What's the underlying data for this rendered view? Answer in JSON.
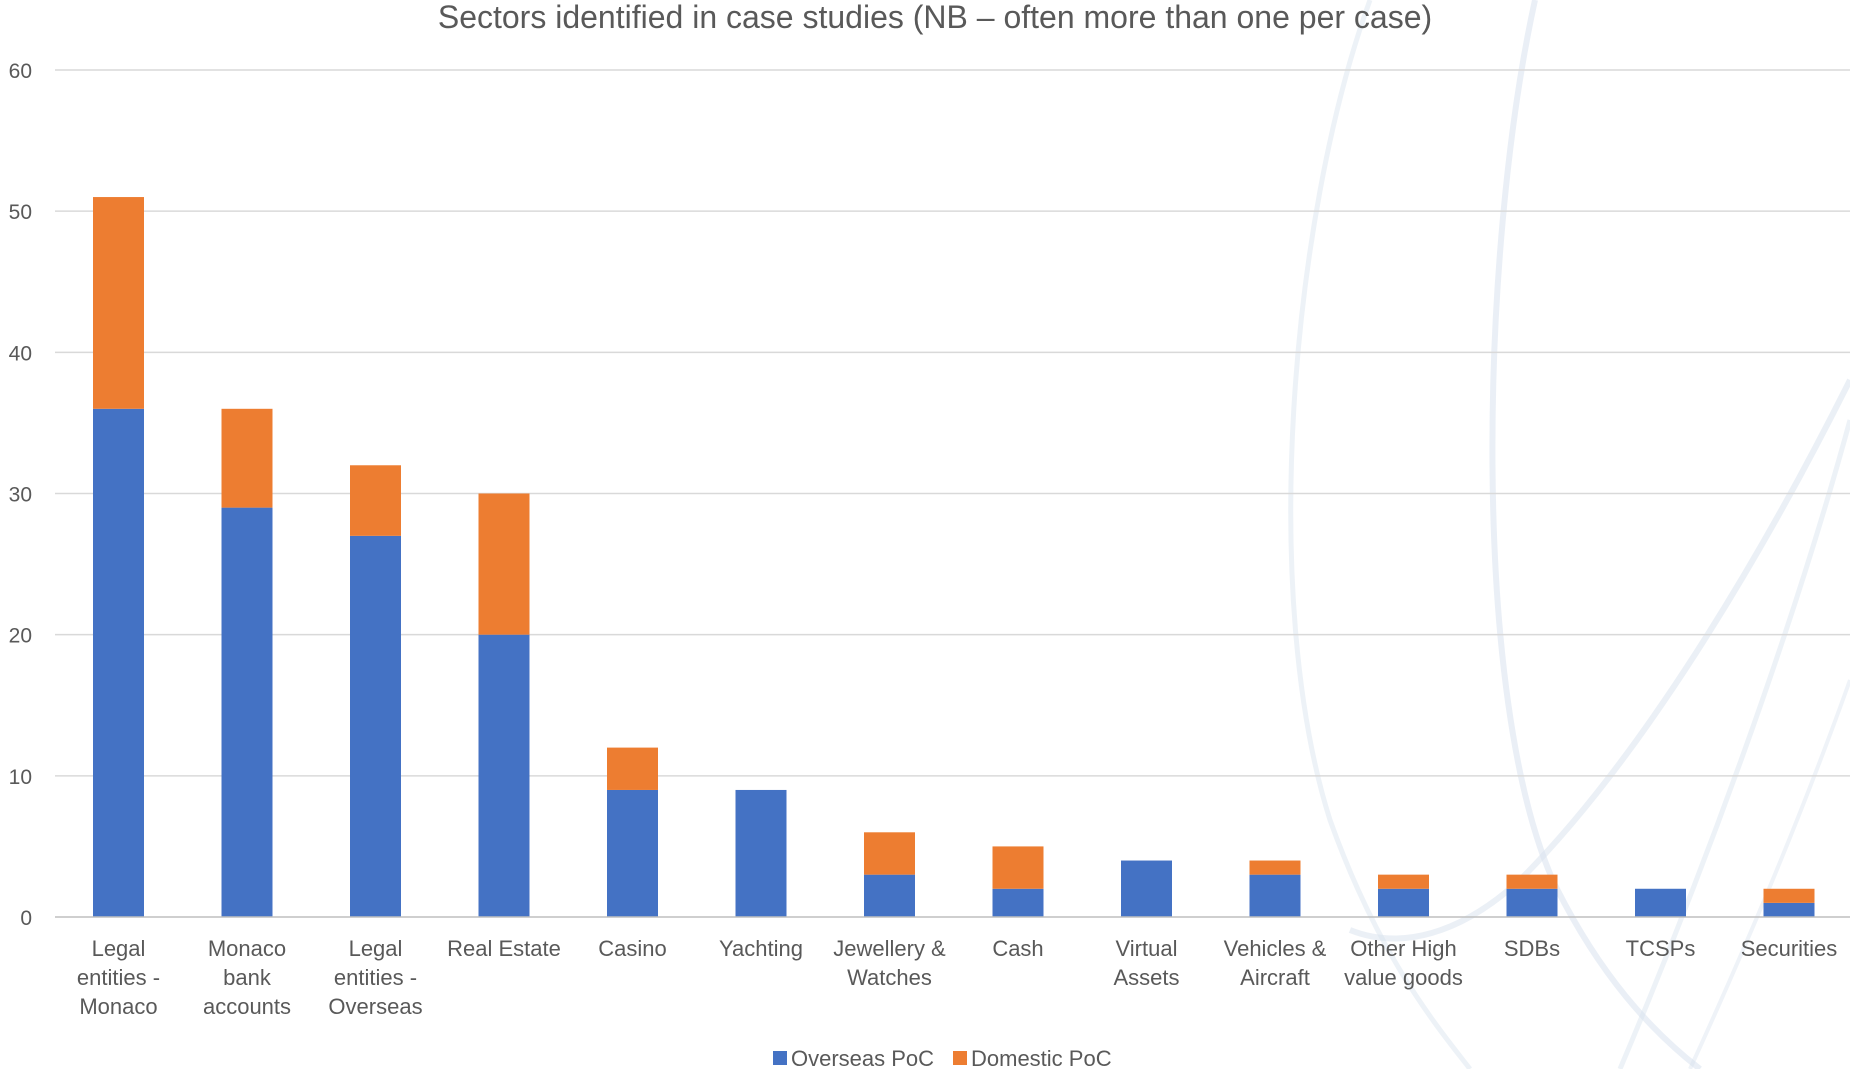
{
  "chart_data": {
    "type": "bar",
    "stacked": true,
    "title": "Sectors identified in case studies (NB – often more than one per case)",
    "xlabel": "",
    "ylabel": "",
    "ylim": [
      0,
      60
    ],
    "yticks": [
      0,
      10,
      20,
      30,
      40,
      50,
      60
    ],
    "grid": true,
    "legend_position": "bottom",
    "categories": [
      [
        "Legal",
        "entities -",
        "Monaco"
      ],
      [
        "Monaco",
        "bank",
        "accounts"
      ],
      [
        "Legal",
        "entities -",
        "Overseas"
      ],
      [
        "Real Estate"
      ],
      [
        "Casino"
      ],
      [
        "Yachting"
      ],
      [
        "Jewellery &",
        "Watches"
      ],
      [
        "Cash"
      ],
      [
        "Virtual",
        "Assets"
      ],
      [
        "Vehicles &",
        "Aircraft"
      ],
      [
        "Other High",
        "value goods"
      ],
      [
        "SDBs"
      ],
      [
        "TCSPs"
      ],
      [
        "Securities"
      ]
    ],
    "series": [
      {
        "name": "Overseas PoC",
        "color": "#4472c4",
        "values": [
          36,
          29,
          27,
          20,
          9,
          9,
          3,
          2,
          4,
          3,
          2,
          2,
          2,
          1
        ]
      },
      {
        "name": "Domestic PoC",
        "color": "#ed7d31",
        "values": [
          15,
          7,
          5,
          10,
          3,
          0,
          3,
          3,
          0,
          1,
          1,
          1,
          0,
          1
        ]
      }
    ]
  }
}
